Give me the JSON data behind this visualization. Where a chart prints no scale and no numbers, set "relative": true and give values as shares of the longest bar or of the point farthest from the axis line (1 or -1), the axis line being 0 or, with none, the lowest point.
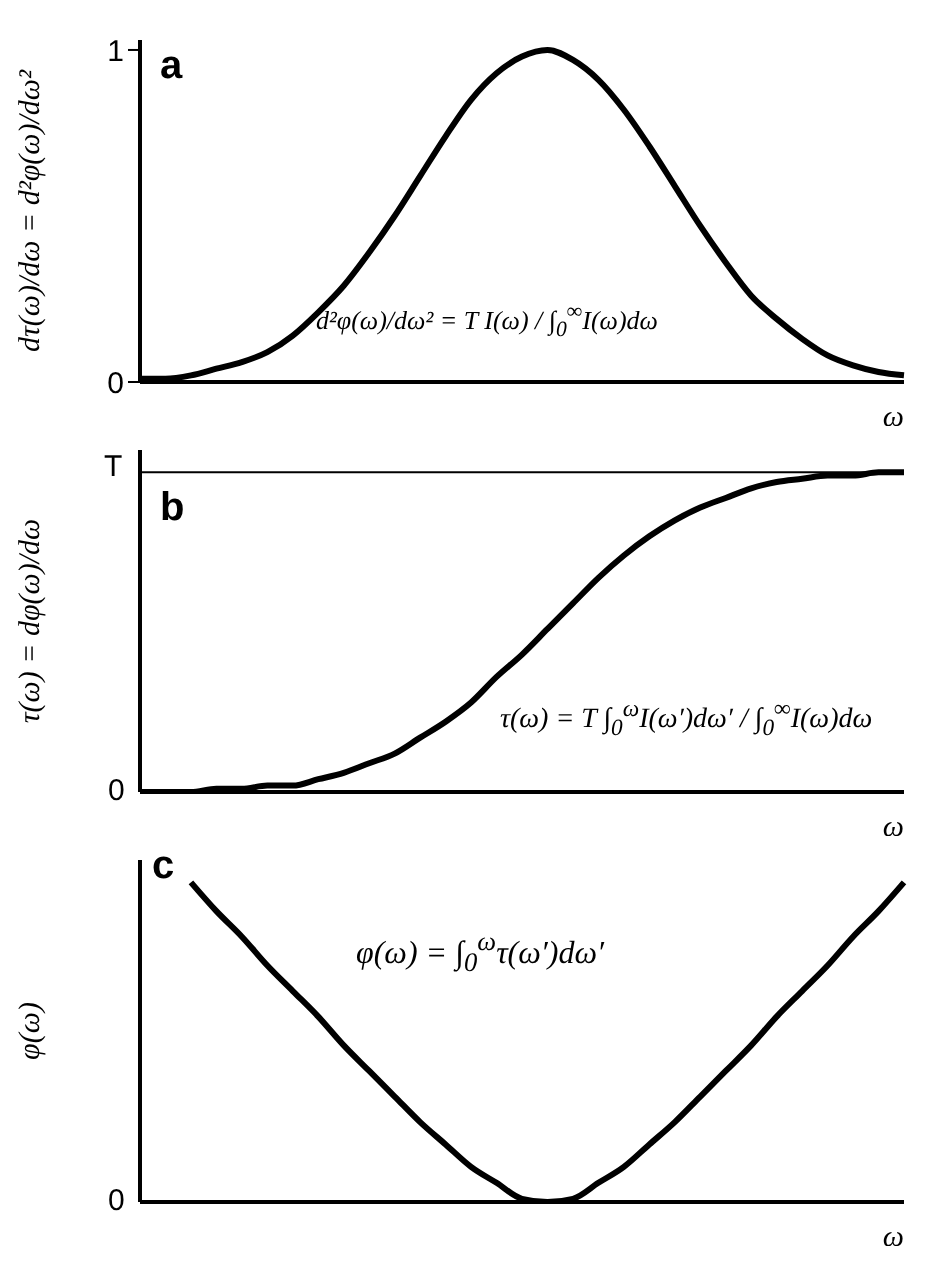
{
  "chart_data": [
    {
      "type": "line",
      "title": "a",
      "ylabel": "dτ(ω)/dω = d²φ(ω)/dω²",
      "xlabel": "ω",
      "categories": [
        null,
        null,
        null,
        null,
        null,
        null,
        null,
        null,
        null,
        null,
        null,
        null,
        null,
        null,
        null,
        null,
        null,
        null,
        null,
        null,
        null,
        null,
        null,
        null,
        null,
        null,
        null,
        null,
        null,
        null,
        null
      ],
      "series": [
        {
          "color": "#000000",
          "values": [
            0.01,
            0.01,
            0.02,
            0.04,
            0.06,
            0.09,
            0.14,
            0.21,
            0.29,
            0.39,
            0.5,
            0.62,
            0.74,
            0.85,
            0.93,
            0.98,
            1,
            0.97,
            0.91,
            0.82,
            0.71,
            0.59,
            0.47,
            0.36,
            0.26,
            0.19,
            0.13,
            0.08,
            0.05,
            0.03,
            0.02
          ]
        }
      ],
      "ylim": [
        0,
        1.03
      ],
      "yticks": [
        0,
        1
      ],
      "annotations": [
        "d²φ(ω)/dω² = T I(ω) / ∫$_{0}$$^{∞}$I(ω)dω"
      ]
    },
    {
      "type": "line",
      "title": "b",
      "ylabel": "τ(ω) = dφ(ω)/dω",
      "xlabel": "ω",
      "categories": [
        null,
        null,
        null,
        null,
        null,
        null,
        null,
        null,
        null,
        null,
        null,
        null,
        null,
        null,
        null,
        null,
        null,
        null,
        null,
        null,
        null,
        null,
        null,
        null,
        null,
        null,
        null,
        null,
        null,
        null,
        null
      ],
      "series": [
        {
          "color": "#000000",
          "values": [
            0,
            0,
            0,
            0.01,
            0.01,
            0.02,
            0.02,
            0.04,
            0.06,
            0.09,
            0.12,
            0.17,
            0.22,
            0.28,
            0.36,
            0.43,
            0.51,
            0.59,
            0.67,
            0.74,
            0.8,
            0.85,
            0.89,
            0.92,
            0.95,
            0.97,
            0.98,
            0.99,
            0.99,
            1,
            1
          ]
        }
      ],
      "relative": true,
      "ref_lines": [
        {
          "axis": "y",
          "value": 1,
          "color": "#000000"
        }
      ],
      "annotations": [
        "τ(ω) = T ∫$_{0}$$^{ω}$I(ω′)dω′ / ∫$_{0}$$^{∞}$I(ω)dω",
        "T",
        "0"
      ]
    },
    {
      "type": "line",
      "title": "c",
      "ylabel": "φ(ω)",
      "xlabel": "ω",
      "relative": true,
      "categories": [
        null,
        null,
        null,
        null,
        null,
        null,
        null,
        null,
        null,
        null,
        null,
        null,
        null,
        null,
        null,
        null,
        null,
        null,
        null,
        null,
        null,
        null,
        null,
        null,
        null,
        null,
        null,
        null,
        null,
        null,
        null
      ],
      "series": [
        {
          "color": "#000000",
          "values": [
            null,
            null,
            1,
            0.91,
            0.83,
            0.74,
            0.66,
            0.58,
            0.49,
            0.41,
            0.33,
            0.25,
            0.18,
            0.11,
            0.06,
            0.01,
            0,
            0.01,
            0.06,
            0.11,
            0.18,
            0.25,
            0.33,
            0.41,
            0.49,
            0.58,
            0.66,
            0.74,
            0.83,
            0.91,
            1
          ]
        }
      ],
      "annotations": [
        "φ(ω) = ∫$_{0}$$^{ω}$τ(ω′)dω′",
        "0"
      ]
    }
  ]
}
